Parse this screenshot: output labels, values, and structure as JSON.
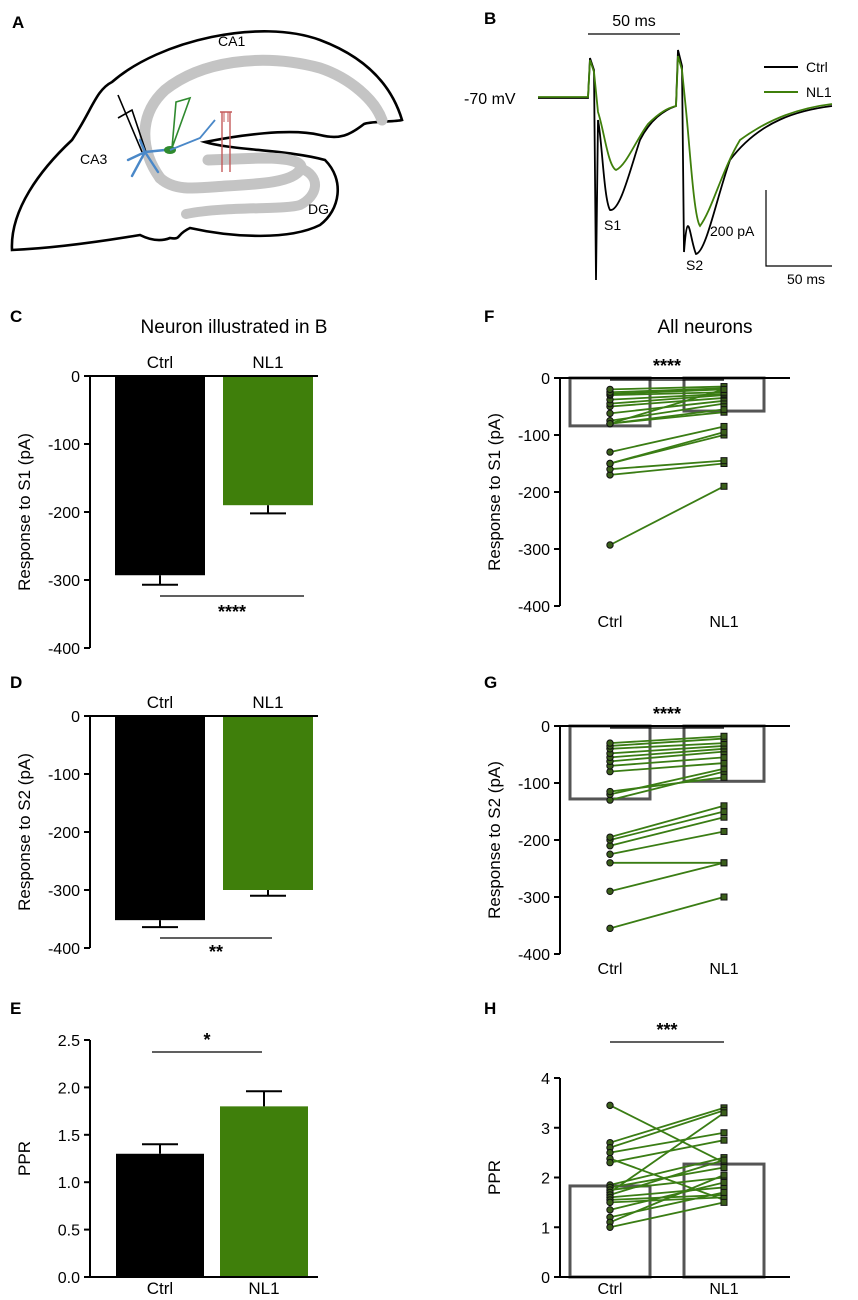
{
  "colors": {
    "ctrl": "#000000",
    "nl1": "#3f7f0b",
    "pair_line": "#3a7d14",
    "summary_bar": "#555555",
    "pink": "#c45a5a",
    "schematic_gray": "#c4c4c4",
    "blue": "#4a88c8",
    "green_dark": "#2f8a2f"
  },
  "panels": {
    "A": "A",
    "B": "B",
    "C": "C",
    "D": "D",
    "E": "E",
    "F": "F",
    "G": "G",
    "H": "H"
  },
  "schematic": {
    "ca1": "CA1",
    "ca3": "CA3",
    "dg": "DG"
  },
  "traces": {
    "time_bar_label": "50 ms",
    "holding_label": "-70 mV",
    "legend": [
      "Ctrl",
      "NL1"
    ],
    "s1_label": "S1",
    "s2_label": "S2",
    "scale_y_label": "200 pA",
    "scale_x_label": "50 ms"
  },
  "chart_data": [
    {
      "id": "C",
      "type": "bar",
      "title": "Neuron illustrated in B",
      "ylabel": "Response to S1 (pA)",
      "ylim": [
        -400,
        0
      ],
      "yticks": [
        0,
        -100,
        -200,
        -300,
        -400
      ],
      "ytick_labels": [
        "0",
        "-100",
        "-200",
        "-300",
        "-400"
      ],
      "categories": [
        "Ctrl",
        "NL1"
      ],
      "values": [
        -293,
        -190
      ],
      "errors": [
        14,
        12
      ],
      "significance": "****",
      "label_position": "top"
    },
    {
      "id": "D",
      "type": "bar",
      "title": "",
      "ylabel": "Response to S2 (pA)",
      "ylim": [
        -400,
        0
      ],
      "yticks": [
        0,
        -100,
        -200,
        -300,
        -400
      ],
      "ytick_labels": [
        "0",
        "-100",
        "-200",
        "-300",
        "-400"
      ],
      "categories": [
        "Ctrl",
        "NL1"
      ],
      "values": [
        -352,
        -300
      ],
      "errors": [
        12,
        10
      ],
      "significance": "**",
      "label_position": "top"
    },
    {
      "id": "E",
      "type": "bar",
      "title": "",
      "ylabel": "PPR",
      "ylim": [
        0,
        2.5
      ],
      "yticks": [
        0,
        0.5,
        1,
        1.5,
        2,
        2.5
      ],
      "ytick_labels": [
        "0.0",
        "0.5",
        "1.0",
        "1.5",
        "2.0",
        "2.5"
      ],
      "categories": [
        "Ctrl",
        "NL1"
      ],
      "values": [
        1.3,
        1.8
      ],
      "errors": [
        0.1,
        0.16
      ],
      "significance": "*",
      "label_position": "bottom"
    },
    {
      "id": "F",
      "type": "paired",
      "title": "All neurons",
      "ylabel": "Response to S1 (pA)",
      "ylim": [
        -400,
        0
      ],
      "yticks": [
        0,
        -100,
        -200,
        -300,
        -400
      ],
      "ytick_labels": [
        "0",
        "-100",
        "-200",
        "-300",
        "-400"
      ],
      "categories": [
        "Ctrl",
        "NL1"
      ],
      "means": [
        -84,
        -58
      ],
      "significance": "****",
      "sig_position": "top",
      "pairs": [
        [
          -293,
          -190
        ],
        [
          -170,
          -150
        ],
        [
          -160,
          -145
        ],
        [
          -150,
          -100
        ],
        [
          -150,
          -95
        ],
        [
          -130,
          -85
        ],
        [
          -80,
          -60
        ],
        [
          -80,
          -55
        ],
        [
          -75,
          -45
        ],
        [
          -62,
          -40
        ],
        [
          -50,
          -35
        ],
        [
          -45,
          -30
        ],
        [
          -38,
          -28
        ],
        [
          -30,
          -25
        ],
        [
          -28,
          -20
        ],
        [
          -25,
          -18
        ],
        [
          -20,
          -15
        ],
        [
          -80,
          -20
        ]
      ]
    },
    {
      "id": "G",
      "type": "paired",
      "title": "",
      "ylabel": "Response to S2 (pA)",
      "ylim": [
        -400,
        0
      ],
      "yticks": [
        0,
        -100,
        -200,
        -300,
        -400
      ],
      "ytick_labels": [
        "0",
        "-100",
        "-200",
        "-300",
        "-400"
      ],
      "categories": [
        "Ctrl",
        "NL1"
      ],
      "means": [
        -128,
        -97
      ],
      "significance": "****",
      "sig_position": "top",
      "pairs": [
        [
          -355,
          -300
        ],
        [
          -290,
          -240
        ],
        [
          -240,
          -240
        ],
        [
          -225,
          -185
        ],
        [
          -210,
          -160
        ],
        [
          -200,
          -150
        ],
        [
          -195,
          -140
        ],
        [
          -130,
          -80
        ],
        [
          -120,
          -75
        ],
        [
          -115,
          -90
        ],
        [
          -80,
          -65
        ],
        [
          -70,
          -55
        ],
        [
          -62,
          -45
        ],
        [
          -55,
          -40
        ],
        [
          -48,
          -35
        ],
        [
          -40,
          -30
        ],
        [
          -35,
          -22
        ],
        [
          -30,
          -18
        ]
      ]
    },
    {
      "id": "H",
      "type": "paired",
      "title": "",
      "ylabel": "PPR",
      "ylim": [
        0,
        4
      ],
      "yticks": [
        0,
        1,
        2,
        3,
        4
      ],
      "ytick_labels": [
        "0",
        "1",
        "2",
        "3",
        "4"
      ],
      "categories": [
        "Ctrl",
        "NL1"
      ],
      "means": [
        1.83,
        2.27
      ],
      "significance": "***",
      "sig_position": "top",
      "pairs": [
        [
          3.45,
          2.3
        ],
        [
          2.7,
          3.4
        ],
        [
          2.6,
          3.35
        ],
        [
          2.5,
          2.9
        ],
        [
          2.38,
          1.55
        ],
        [
          2.3,
          2.75
        ],
        [
          1.85,
          2.4
        ],
        [
          1.8,
          2.2
        ],
        [
          1.75,
          2.0
        ],
        [
          1.7,
          3.3
        ],
        [
          1.65,
          2.35
        ],
        [
          1.6,
          1.8
        ],
        [
          1.55,
          1.65
        ],
        [
          1.5,
          1.6
        ],
        [
          1.35,
          1.9
        ],
        [
          1.2,
          1.7
        ],
        [
          1.1,
          2.05
        ],
        [
          1.0,
          1.5
        ]
      ]
    }
  ]
}
